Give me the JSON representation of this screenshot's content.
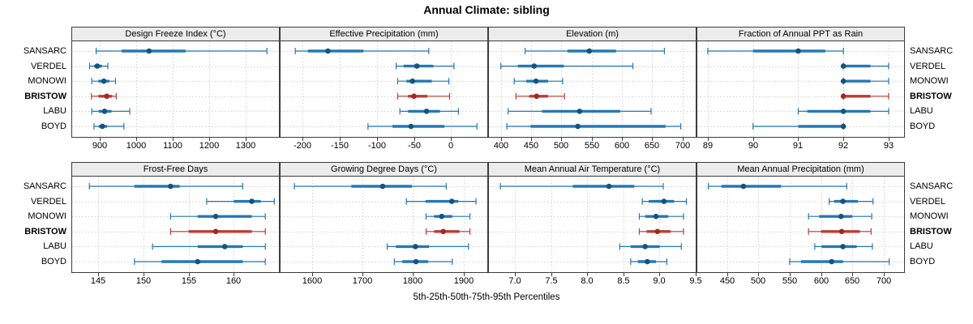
{
  "title": "Annual Climate: sibling",
  "caption": "5th-25th-50th-75th-95th Percentiles",
  "stations": [
    "SANSARC",
    "VERDEL",
    "MONOWI",
    "BRISTOW",
    "LABU",
    "BOYD"
  ],
  "highlight_station": "BRISTOW",
  "colors": {
    "normal_line": "#2478b5",
    "normal_dot": "#14547e",
    "highlight_line": "#bf3a33",
    "highlight_dot": "#9c2b24",
    "grid": "#d2d2d2",
    "border": "#3c3c3c",
    "strip_bg": "#ececec"
  },
  "chart_data": [
    {
      "type": "dotplot-percentile",
      "title": "Design Freeze Index (°C)",
      "row": 0,
      "col": 0,
      "xlim": [
        822,
        1393
      ],
      "ticks": [
        900,
        1000,
        1100,
        1200,
        1300
      ],
      "tick_labels": [
        "900",
        "1000",
        "1100",
        "1200",
        "1300"
      ],
      "series": [
        {
          "name": "SANSARC",
          "percentiles": [
            890,
            960,
            1035,
            1135,
            1358
          ]
        },
        {
          "name": "VERDEL",
          "percentiles": [
            872,
            884,
            893,
            906,
            922
          ]
        },
        {
          "name": "MONOWI",
          "percentiles": [
            878,
            896,
            911,
            926,
            943
          ]
        },
        {
          "name": "BRISTOW",
          "percentiles": [
            877,
            896,
            919,
            934,
            945
          ]
        },
        {
          "name": "LABU",
          "percentiles": [
            878,
            897,
            913,
            932,
            982
          ]
        },
        {
          "name": "BOYD",
          "percentiles": [
            884,
            897,
            907,
            920,
            966
          ]
        }
      ]
    },
    {
      "type": "dotplot-percentile",
      "title": "Effective Precipitation (mm)",
      "row": 0,
      "col": 1,
      "xlim": [
        -231,
        50
      ],
      "ticks": [
        -200,
        -150,
        -100,
        -50,
        0
      ],
      "tick_labels": [
        "-200",
        "-150",
        "-100",
        "-50",
        "0"
      ],
      "series": [
        {
          "name": "SANSARC",
          "percentiles": [
            -210,
            -193,
            -166,
            -118,
            -30
          ]
        },
        {
          "name": "VERDEL",
          "percentiles": [
            -74,
            -64,
            -46,
            -24,
            4
          ]
        },
        {
          "name": "MONOWI",
          "percentiles": [
            -72,
            -60,
            -52,
            -26,
            -3
          ]
        },
        {
          "name": "BRISTOW",
          "percentiles": [
            -72,
            -58,
            -50,
            -32,
            -2
          ]
        },
        {
          "name": "LABU",
          "percentiles": [
            -69,
            -58,
            -33,
            -15,
            10
          ]
        },
        {
          "name": "BOYD",
          "percentiles": [
            -112,
            -79,
            -54,
            -9,
            35
          ]
        }
      ]
    },
    {
      "type": "dotplot-percentile",
      "title": "Elevation (m)",
      "row": 0,
      "col": 2,
      "xlim": [
        379,
        723
      ],
      "ticks": [
        400,
        450,
        500,
        550,
        600,
        650,
        700
      ],
      "tick_labels": [
        "400",
        "450",
        "500",
        "550",
        "600",
        "650",
        "700"
      ],
      "series": [
        {
          "name": "SANSARC",
          "percentiles": [
            440,
            510,
            546,
            590,
            670
          ]
        },
        {
          "name": "VERDEL",
          "percentiles": [
            400,
            428,
            455,
            504,
            618
          ]
        },
        {
          "name": "MONOWI",
          "percentiles": [
            422,
            442,
            458,
            478,
            502
          ]
        },
        {
          "name": "BRISTOW",
          "percentiles": [
            425,
            447,
            459,
            478,
            505
          ]
        },
        {
          "name": "LABU",
          "percentiles": [
            412,
            468,
            530,
            597,
            648
          ]
        },
        {
          "name": "BOYD",
          "percentiles": [
            410,
            449,
            527,
            672,
            697
          ]
        }
      ]
    },
    {
      "type": "dotplot-percentile",
      "title": "Fraction of Annual PPT as Rain",
      "row": 0,
      "col": 3,
      "xlim": [
        88.75,
        93.36
      ],
      "ticks": [
        89,
        90,
        91,
        92,
        93
      ],
      "tick_labels": [
        "89",
        "90",
        "91",
        "92",
        "93"
      ],
      "series": [
        {
          "name": "SANSARC",
          "percentiles": [
            89,
            90,
            91,
            91.6,
            92
          ]
        },
        {
          "name": "VERDEL",
          "percentiles": [
            92,
            92,
            92,
            92.6,
            93
          ]
        },
        {
          "name": "MONOWI",
          "percentiles": [
            92,
            92,
            92,
            92.6,
            93
          ]
        },
        {
          "name": "BRISTOW",
          "percentiles": [
            92,
            92,
            92,
            92.6,
            93
          ]
        },
        {
          "name": "LABU",
          "percentiles": [
            91,
            91.2,
            92,
            92.6,
            93
          ]
        },
        {
          "name": "BOYD",
          "percentiles": [
            90,
            91,
            92,
            92,
            92
          ]
        }
      ]
    },
    {
      "type": "dotplot-percentile",
      "title": "Frost-Free Days",
      "row": 1,
      "col": 0,
      "xlim": [
        142,
        165.1
      ],
      "ticks": [
        145,
        150,
        155,
        160
      ],
      "tick_labels": [
        "145",
        "150",
        "155",
        "160"
      ],
      "series": [
        {
          "name": "SANSARC",
          "percentiles": [
            144,
            149,
            153,
            154,
            161
          ]
        },
        {
          "name": "VERDEL",
          "percentiles": [
            157,
            160,
            162,
            163,
            164.5
          ]
        },
        {
          "name": "MONOWI",
          "percentiles": [
            153,
            156,
            158,
            162,
            163.5
          ]
        },
        {
          "name": "BRISTOW",
          "percentiles": [
            153,
            155,
            158,
            162,
            163.5
          ]
        },
        {
          "name": "LABU",
          "percentiles": [
            151,
            156,
            159,
            161,
            163.5
          ]
        },
        {
          "name": "BOYD",
          "percentiles": [
            149,
            152,
            156,
            161,
            163.5
          ]
        }
      ]
    },
    {
      "type": "dotplot-percentile",
      "title": "Growing Degree Days (°C)",
      "row": 1,
      "col": 1,
      "xlim": [
        1536,
        1949
      ],
      "ticks": [
        1600,
        1700,
        1800,
        1900
      ],
      "tick_labels": [
        "1600",
        "1700",
        "1800",
        "1900"
      ],
      "series": [
        {
          "name": "SANSARC",
          "percentiles": [
            1565,
            1678,
            1740,
            1798,
            1866
          ]
        },
        {
          "name": "VERDEL",
          "percentiles": [
            1787,
            1825,
            1877,
            1890,
            1925
          ]
        },
        {
          "name": "MONOWI",
          "percentiles": [
            1826,
            1842,
            1857,
            1878,
            1913
          ]
        },
        {
          "name": "BRISTOW",
          "percentiles": [
            1826,
            1842,
            1860,
            1892,
            1913
          ]
        },
        {
          "name": "LABU",
          "percentiles": [
            1749,
            1766,
            1805,
            1832,
            1910
          ]
        },
        {
          "name": "BOYD",
          "percentiles": [
            1763,
            1779,
            1806,
            1830,
            1878
          ]
        }
      ]
    },
    {
      "type": "dotplot-percentile",
      "title": "Mean Annual Air Temperature (°C)",
      "row": 1,
      "col": 2,
      "xlim": [
        6.63,
        9.51
      ],
      "ticks": [
        7.0,
        7.5,
        8.0,
        8.5,
        9.0,
        9.5
      ],
      "tick_labels": [
        "7.0",
        "7.5",
        "8.0",
        "8.5",
        "9.0",
        "9.5"
      ],
      "series": [
        {
          "name": "SANSARC",
          "percentiles": [
            6.8,
            7.8,
            8.3,
            8.65,
            9.05
          ]
        },
        {
          "name": "VERDEL",
          "percentiles": [
            8.76,
            8.85,
            9.06,
            9.2,
            9.37
          ]
        },
        {
          "name": "MONOWI",
          "percentiles": [
            8.72,
            8.8,
            8.95,
            9.12,
            9.33
          ]
        },
        {
          "name": "BRISTOW",
          "percentiles": [
            8.72,
            8.82,
            8.97,
            9.15,
            9.33
          ]
        },
        {
          "name": "LABU",
          "percentiles": [
            8.45,
            8.6,
            8.8,
            9.0,
            9.3
          ]
        },
        {
          "name": "BOYD",
          "percentiles": [
            8.6,
            8.7,
            8.83,
            8.95,
            9.1
          ]
        }
      ]
    },
    {
      "type": "dotplot-percentile",
      "title": "Mean Annual Precipitation (mm)",
      "row": 1,
      "col": 3,
      "xlim": [
        401,
        734
      ],
      "ticks": [
        450,
        500,
        550,
        600,
        650,
        700
      ],
      "tick_labels": [
        "450",
        "500",
        "550",
        "600",
        "650",
        "700"
      ],
      "series": [
        {
          "name": "SANSARC",
          "percentiles": [
            420,
            441,
            476,
            536,
            641
          ]
        },
        {
          "name": "VERDEL",
          "percentiles": [
            613,
            621,
            635,
            659,
            683
          ]
        },
        {
          "name": "MONOWI",
          "percentiles": [
            580,
            597,
            632,
            650,
            681
          ]
        },
        {
          "name": "BRISTOW",
          "percentiles": [
            580,
            600,
            633,
            662,
            680
          ]
        },
        {
          "name": "LABU",
          "percentiles": [
            590,
            601,
            635,
            657,
            682
          ]
        },
        {
          "name": "BOYD",
          "percentiles": [
            550,
            568,
            617,
            635,
            709
          ]
        }
      ]
    }
  ]
}
